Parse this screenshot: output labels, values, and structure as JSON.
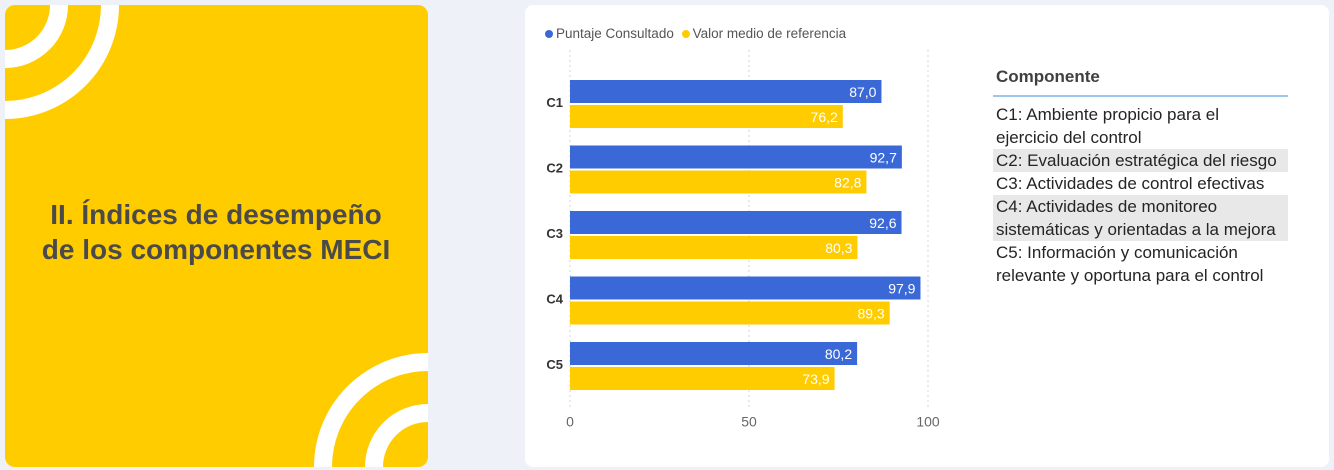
{
  "section": {
    "title_line1": "II. Índices de desempeño",
    "title_line2": "de los componentes MECI"
  },
  "colors": {
    "panel_yellow": "#ffcc00",
    "series_blue": "#3a68d6",
    "series_yellow": "#ffcc00"
  },
  "chart_data": {
    "type": "bar",
    "orientation": "horizontal",
    "categories": [
      "C1",
      "C2",
      "C3",
      "C4",
      "C5"
    ],
    "series": [
      {
        "name": "Puntaje Consultado",
        "color": "#3a68d6",
        "values": [
          87.0,
          92.7,
          92.6,
          97.9,
          80.2
        ],
        "labels": [
          "87,0",
          "92,7",
          "92,6",
          "97,9",
          "80,2"
        ]
      },
      {
        "name": "Valor medio de referencia",
        "color": "#ffcc00",
        "values": [
          76.2,
          82.8,
          80.3,
          89.3,
          73.9
        ],
        "labels": [
          "76,2",
          "82,8",
          "80,3",
          "89,3",
          "73,9"
        ]
      }
    ],
    "xlim": [
      0,
      100
    ],
    "xticks": [
      0,
      50,
      100
    ],
    "xtick_labels": [
      "0",
      "50",
      "100"
    ],
    "grid": true,
    "legend_position": "top-left"
  },
  "table": {
    "header": "Componente",
    "rows": [
      "C1: Ambiente propicio para el ejercicio del control",
      "C2: Evaluación estratégica del riesgo",
      "C3: Actividades de control efectivas",
      "C4: Actividades de monitoreo sistemáticas y orientadas a la mejora",
      "C5: Información y comunicación relevante y oportuna para el control"
    ]
  }
}
